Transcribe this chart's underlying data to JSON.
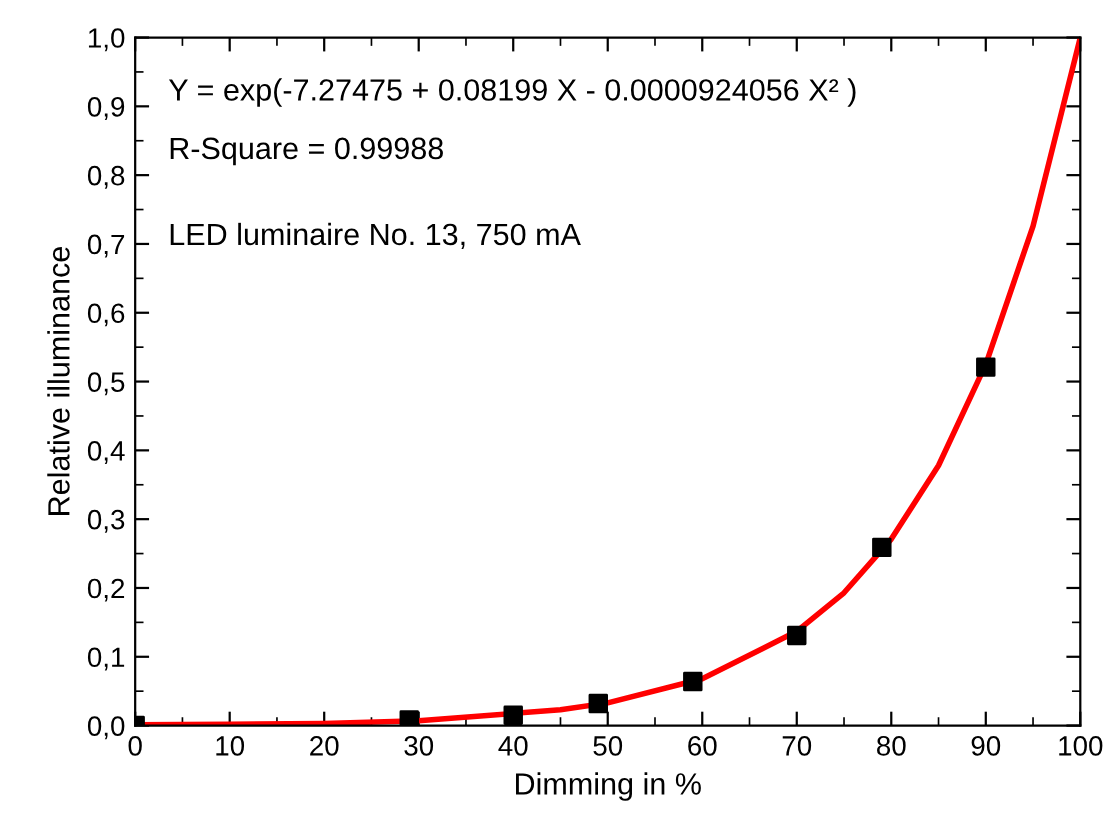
{
  "chart_data": {
    "type": "scatter",
    "xlabel": "Dimming in %",
    "ylabel": "Relative illuminance",
    "annotations": [
      "Y = exp(-7.27475 + 0.08199 X - 0.0000924056 X² )",
      "R-Square = 0.99988",
      "LED luminaire No. 13, 750 mA"
    ],
    "x": [
      0,
      29,
      40,
      49,
      59,
      70,
      79,
      90
    ],
    "series": [
      {
        "color": "#000000",
        "marker": "square",
        "values": [
          0.0,
          0.008,
          0.015,
          0.032,
          0.064,
          0.131,
          0.259,
          0.521
        ]
      },
      {
        "type": "line",
        "color": "#ff0000",
        "marker": "none",
        "line_style": "solid",
        "x": [
          0,
          10,
          20,
          30,
          45,
          50,
          60,
          70,
          75,
          80,
          85,
          90,
          95,
          100
        ],
        "values": [
          0.001,
          0.002,
          0.003,
          0.007,
          0.023,
          0.033,
          0.068,
          0.137,
          0.193,
          0.271,
          0.378,
          0.525,
          0.726,
          1.0
        ]
      }
    ],
    "xlim": [
      0,
      100
    ],
    "xticks": [
      0,
      10,
      20,
      30,
      40,
      50,
      60,
      70,
      80,
      90,
      100
    ],
    "ylim": [
      0,
      1.0
    ],
    "yticks": [
      {
        "value": 0,
        "label": "0,0"
      },
      {
        "value": 0.1,
        "label": "0,1"
      },
      {
        "value": 0.2,
        "label": "0,2"
      },
      {
        "value": 0.3,
        "label": "0,3"
      },
      {
        "value": 0.4,
        "label": "0,4"
      },
      {
        "value": 0.5,
        "label": "0,5"
      },
      {
        "value": 0.6,
        "label": "0,6"
      },
      {
        "value": 0.7,
        "label": "0,7"
      },
      {
        "value": 0.8,
        "label": "0,8"
      },
      {
        "value": 0.9,
        "label": "0,9"
      },
      {
        "value": 1.0,
        "label": "1,0"
      }
    ],
    "grid": false,
    "legend": false
  }
}
